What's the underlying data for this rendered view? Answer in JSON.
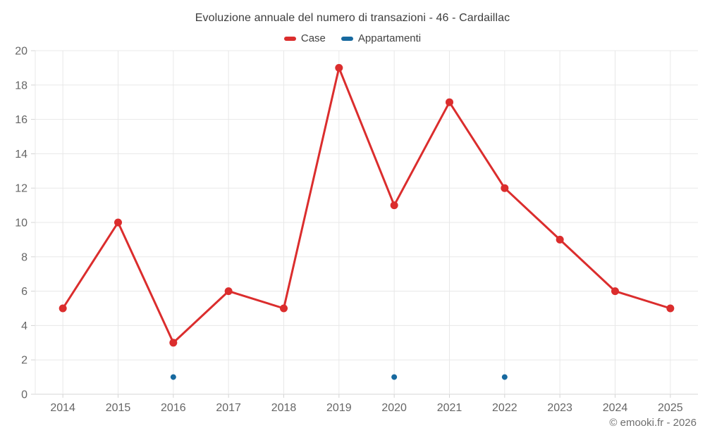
{
  "footer": {
    "attribution": "© emooki.fr - 2026"
  },
  "chart_data": {
    "type": "line",
    "title": "Evoluzione annuale del numero di transazioni - 46 - Cardaillac",
    "categories": [
      "2014",
      "2015",
      "2016",
      "2017",
      "2018",
      "2019",
      "2020",
      "2021",
      "2022",
      "2023",
      "2024",
      "2025"
    ],
    "series": [
      {
        "name": "Case",
        "color": "#db2d2d",
        "marker_radius": 5.5,
        "line_width": 3,
        "values": [
          5,
          10,
          3,
          6,
          5,
          19,
          11,
          17,
          12,
          9,
          6,
          5
        ]
      },
      {
        "name": "Appartamenti",
        "color": "#17699f",
        "marker_radius": 4,
        "line_width": 2,
        "values": [
          null,
          null,
          1,
          null,
          null,
          null,
          1,
          null,
          1,
          null,
          null,
          null
        ]
      }
    ],
    "xlabel": "",
    "ylabel": "",
    "ylim": [
      0,
      20
    ],
    "ytick_step": 2,
    "grid": true,
    "legend_position": "top",
    "colors": {
      "grid": "#e8e8e8",
      "axis_line": "#d4d4d4",
      "tick": "#d4d4d4",
      "axis_label": "#666666",
      "title_text": "#3d3d3d",
      "legend_text": "#424242",
      "background": "#ffffff"
    }
  }
}
